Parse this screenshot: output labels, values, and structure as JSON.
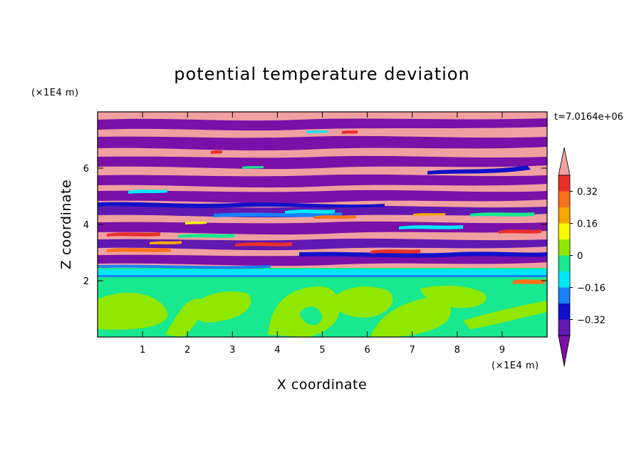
{
  "chart_data": {
    "type": "heatmap",
    "title": "potential temperature deviation",
    "xlabel": "X coordinate",
    "ylabel": "Z coordinate",
    "x_unit": "(×1E4 m)",
    "y_unit": "(×1E4 m)",
    "time_label": "t=7.0164e+06",
    "xlim": [
      0,
      10
    ],
    "ylim": [
      0,
      8
    ],
    "x_ticks": [
      1,
      2,
      3,
      4,
      5,
      6,
      7,
      8,
      9
    ],
    "y_ticks": [
      2,
      4,
      6
    ],
    "x_tick_labels": [
      "1",
      "2",
      "3",
      "4",
      "5",
      "6",
      "7",
      "8",
      "9"
    ],
    "y_tick_labels": [
      "2",
      "4",
      "6"
    ],
    "colorbar": {
      "levels": [
        -0.4,
        -0.32,
        -0.24,
        -0.16,
        -0.08,
        0,
        0.08,
        0.16,
        0.24,
        0.32,
        0.4
      ],
      "labels": [
        "0.32",
        "0.16",
        "0",
        "−0.16",
        "−0.32"
      ],
      "label_values": [
        0.32,
        0.16,
        0,
        -0.16,
        -0.32
      ],
      "colors_high_to_low": [
        "#f0a0a0",
        "#e8302a",
        "#f8701a",
        "#f8a800",
        "#f8f800",
        "#90e800",
        "#18e890",
        "#00e8f8",
        "#1880f8",
        "#1010c8",
        "#6018b0",
        "#7a10a8"
      ],
      "extend": "both"
    }
  }
}
